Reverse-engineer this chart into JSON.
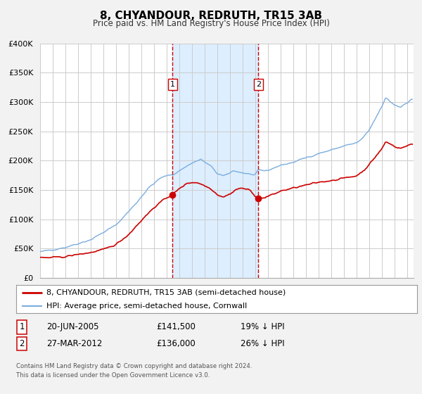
{
  "title": "8, CHYANDOUR, REDRUTH, TR15 3AB",
  "subtitle": "Price paid vs. HM Land Registry's House Price Index (HPI)",
  "ylim": [
    0,
    400000
  ],
  "yticks": [
    0,
    50000,
    100000,
    150000,
    200000,
    250000,
    300000,
    350000,
    400000
  ],
  "ytick_labels": [
    "£0",
    "£50K",
    "£100K",
    "£150K",
    "£200K",
    "£250K",
    "£300K",
    "£350K",
    "£400K"
  ],
  "xlim_start": 1995.0,
  "xlim_end": 2024.5,
  "sale_color": "#cc0000",
  "hpi_color": "#7aade0",
  "vline_color": "#cc0000",
  "shade_color": "#ddeeff",
  "marker1_date": 2005.47,
  "marker1_value": 141500,
  "marker2_date": 2012.24,
  "marker2_value": 136000,
  "legend_sale_label": "8, CHYANDOUR, REDRUTH, TR15 3AB (semi-detached house)",
  "legend_hpi_label": "HPI: Average price, semi-detached house, Cornwall",
  "annotation1_label": "1",
  "annotation1_date_str": "20-JUN-2005",
  "annotation1_price_str": "£141,500",
  "annotation1_pct_str": "19% ↓ HPI",
  "annotation2_label": "2",
  "annotation2_date_str": "27-MAR-2012",
  "annotation2_price_str": "£136,000",
  "annotation2_pct_str": "26% ↓ HPI",
  "footnote1": "Contains HM Land Registry data © Crown copyright and database right 2024.",
  "footnote2": "This data is licensed under the Open Government Licence v3.0.",
  "background_color": "#f2f2f2",
  "plot_bg_color": "#ffffff",
  "grid_color": "#cccccc"
}
